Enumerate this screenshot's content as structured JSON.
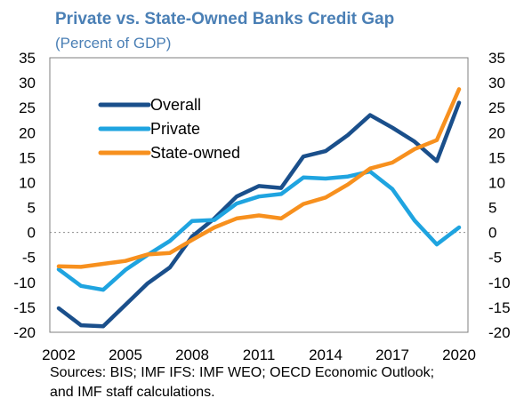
{
  "chart_data": {
    "type": "line",
    "title": "Private vs. State-Owned Banks Credit Gap",
    "subtitle": "(Percent of GDP)",
    "xlabel": "",
    "ylabel": "",
    "x": [
      2002,
      2003,
      2004,
      2005,
      2006,
      2007,
      2008,
      2009,
      2010,
      2011,
      2012,
      2013,
      2014,
      2015,
      2016,
      2017,
      2018,
      2019,
      2020
    ],
    "x_tick_labels": [
      "2002",
      "2005",
      "2008",
      "2011",
      "2014",
      "2017",
      "2020"
    ],
    "x_tick_values": [
      2002,
      2005,
      2008,
      2011,
      2014,
      2017,
      2020
    ],
    "xlim": [
      2001.6,
      2020.4
    ],
    "ylim": [
      -20,
      35
    ],
    "y_tick_values": [
      -20,
      -15,
      -10,
      -5,
      0,
      5,
      10,
      15,
      20,
      25,
      30,
      35
    ],
    "y_tick_labels": [
      "-20",
      "-15",
      "-10",
      "-5",
      "0",
      "5",
      "10",
      "15",
      "20",
      "25",
      "30",
      "35"
    ],
    "grid": false,
    "dual_y_axis_labels": true,
    "legend_position": "upper-left",
    "series": [
      {
        "name": "Overall",
        "color": "#1a4f8b",
        "values": [
          -15.2,
          -18.6,
          -18.8,
          -14.5,
          -10.2,
          -7.0,
          -0.8,
          2.8,
          7.2,
          9.3,
          8.9,
          15.2,
          16.3,
          19.5,
          23.5,
          21.0,
          18.2,
          14.3,
          26.0
        ]
      },
      {
        "name": "Private",
        "color": "#1fa4e0",
        "values": [
          -7.4,
          -10.7,
          -11.5,
          -7.5,
          -4.5,
          -1.7,
          2.3,
          2.5,
          5.8,
          7.2,
          7.7,
          11.0,
          10.8,
          11.2,
          12.2,
          8.7,
          2.4,
          -2.4,
          1.0
        ]
      },
      {
        "name": "State-owned",
        "color": "#f7901e",
        "values": [
          -6.8,
          -6.9,
          -6.3,
          -5.7,
          -4.4,
          -4.1,
          -1.5,
          1.0,
          2.8,
          3.4,
          2.8,
          5.7,
          7.0,
          9.6,
          12.8,
          14.0,
          16.7,
          18.5,
          28.7
        ]
      }
    ],
    "source_note": [
      "Sources: BIS; IMF IFS: IMF WEO; OECD Economic Outlook;",
      "and IMF staff calculations."
    ]
  }
}
